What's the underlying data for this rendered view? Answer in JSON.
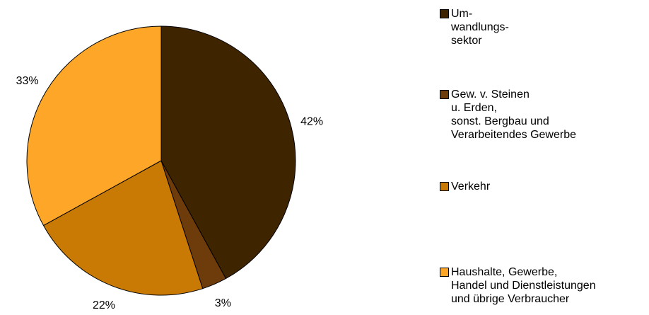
{
  "chart_data": {
    "type": "pie",
    "categories": [
      "Um-\nwandlungs-\nsektor",
      "Gew. v. Steinen\nu. Erden,\nsonst. Bergbau und\nVerarbeitendes Gewerbe",
      "Verkehr",
      "Haushalte, Gewerbe,\nHandel und Dienstleistungen\nund übrige Verbraucher"
    ],
    "values": [
      42,
      3,
      22,
      33
    ],
    "value_labels": [
      "42%",
      "3%",
      "22%",
      "33%"
    ],
    "colors": [
      "#3f2400",
      "#6e3c0b",
      "#c97a04",
      "#fda628"
    ],
    "legend": "right"
  }
}
